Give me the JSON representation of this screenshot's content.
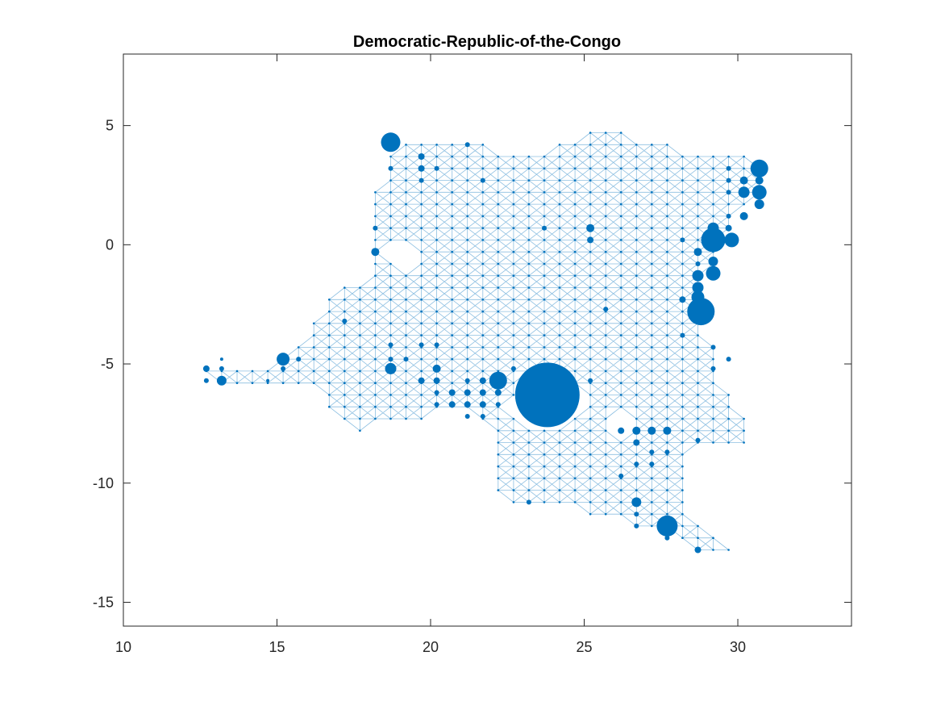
{
  "chart_data": {
    "type": "scatter",
    "title": "Democratic-Republic-of-the-Congo",
    "xlabel": "",
    "ylabel": "",
    "xlim": [
      10,
      33.7
    ],
    "ylim": [
      -16,
      8
    ],
    "xticks": [
      10,
      15,
      20,
      25,
      30
    ],
    "yticks": [
      5,
      0,
      -5,
      -10,
      -15
    ],
    "xtick_labels": [
      "10",
      "15",
      "20",
      "25",
      "30"
    ],
    "ytick_labels": [
      "5",
      "0",
      "-5",
      "-10",
      "-15"
    ],
    "grid": false,
    "box": true,
    "color": "#0072BD",
    "mesh_step": 0.5,
    "mesh_color": "#0072BD",
    "outline": [
      [
        12.7,
        -5.2
      ],
      [
        13.3,
        -4.8
      ],
      [
        14.8,
        -4.8
      ],
      [
        15.2,
        -4.6
      ],
      [
        15.8,
        -4.2
      ],
      [
        16.2,
        -3.0
      ],
      [
        16.8,
        -1.8
      ],
      [
        17.3,
        -1.2
      ],
      [
        17.8,
        -1.8
      ],
      [
        18.2,
        -0.8
      ],
      [
        18.2,
        0.5
      ],
      [
        18.0,
        1.8
      ],
      [
        18.7,
        3.7
      ],
      [
        19.2,
        4.7
      ],
      [
        21.0,
        4.7
      ],
      [
        22.0,
        4.2
      ],
      [
        22.8,
        4.2
      ],
      [
        24.0,
        4.2
      ],
      [
        25.0,
        4.7
      ],
      [
        25.8,
        5.2
      ],
      [
        26.5,
        4.7
      ],
      [
        28.0,
        4.2
      ],
      [
        29.5,
        4.2
      ],
      [
        30.3,
        3.7
      ],
      [
        30.8,
        3.4
      ],
      [
        31.0,
        2.8
      ],
      [
        30.8,
        1.8
      ],
      [
        29.8,
        0.8
      ],
      [
        29.5,
        -0.3
      ],
      [
        29.0,
        -1.3
      ],
      [
        29.0,
        -3.5
      ],
      [
        29.3,
        -4.2
      ],
      [
        29.5,
        -6.0
      ],
      [
        30.5,
        -7.2
      ],
      [
        30.5,
        -8.3
      ],
      [
        28.5,
        -8.5
      ],
      [
        28.3,
        -9.5
      ],
      [
        28.3,
        -11.3
      ],
      [
        29.0,
        -11.8
      ],
      [
        29.5,
        -12.3
      ],
      [
        29.9,
        -12.3
      ],
      [
        29.9,
        -13.3
      ],
      [
        29.0,
        -13.2
      ],
      [
        28.3,
        -12.6
      ],
      [
        27.5,
        -12.1
      ],
      [
        27.0,
        -11.8
      ],
      [
        26.3,
        -11.8
      ],
      [
        25.8,
        -11.3
      ],
      [
        24.8,
        -11.3
      ],
      [
        24.0,
        -11.0
      ],
      [
        23.0,
        -11.0
      ],
      [
        22.3,
        -10.8
      ],
      [
        22.0,
        -10.3
      ],
      [
        22.0,
        -9.0
      ],
      [
        21.8,
        -7.5
      ],
      [
        20.5,
        -6.8
      ],
      [
        19.5,
        -7.5
      ],
      [
        18.0,
        -7.8
      ],
      [
        17.3,
        -7.8
      ],
      [
        16.8,
        -7.3
      ],
      [
        16.3,
        -6.0
      ],
      [
        14.5,
        -5.8
      ],
      [
        13.2,
        -5.8
      ],
      [
        12.7,
        -5.7
      ]
    ],
    "holes": [
      [
        [
          23.8,
          -5.4
        ],
        [
          24.3,
          -5.8
        ],
        [
          24.8,
          -6.4
        ],
        [
          24.6,
          -7.2
        ],
        [
          24.0,
          -7.6
        ],
        [
          23.2,
          -7.4
        ],
        [
          22.7,
          -6.8
        ],
        [
          22.8,
          -6.0
        ],
        [
          23.3,
          -5.5
        ]
      ],
      [
        [
          24.7,
          -6.6
        ],
        [
          25.0,
          -6.4
        ],
        [
          25.0,
          -7.2
        ],
        [
          24.7,
          -7.2
        ]
      ],
      [
        [
          18.3,
          0.0
        ],
        [
          18.6,
          0.2
        ],
        [
          18.8,
          -1.2
        ],
        [
          19.4,
          -1.3
        ],
        [
          19.5,
          -0.4
        ],
        [
          18.8,
          0.2
        ],
        [
          18.4,
          0.0
        ]
      ],
      [
        [
          26.0,
          -7.0
        ],
        [
          26.4,
          -7.0
        ],
        [
          26.4,
          -7.8
        ],
        [
          26.0,
          -7.8
        ]
      ]
    ],
    "points": [
      {
        "x": 23.8,
        "y": -6.3,
        "r": 40
      },
      {
        "x": 28.8,
        "y": -2.8,
        "r": 17
      },
      {
        "x": 29.2,
        "y": 0.2,
        "r": 15
      },
      {
        "x": 30.7,
        "y": 3.2,
        "r": 11
      },
      {
        "x": 18.7,
        "y": 4.3,
        "r": 12
      },
      {
        "x": 27.7,
        "y": -11.8,
        "r": 13
      },
      {
        "x": 22.2,
        "y": -5.7,
        "r": 11
      },
      {
        "x": 29.8,
        "y": 0.2,
        "r": 9
      },
      {
        "x": 29.2,
        "y": -1.2,
        "r": 9
      },
      {
        "x": 30.7,
        "y": 2.2,
        "r": 9
      },
      {
        "x": 30.2,
        "y": 2.2,
        "r": 7
      },
      {
        "x": 28.7,
        "y": -1.3,
        "r": 7
      },
      {
        "x": 28.7,
        "y": -1.8,
        "r": 7
      },
      {
        "x": 28.7,
        "y": -2.2,
        "r": 8
      },
      {
        "x": 29.2,
        "y": 0.7,
        "r": 7
      },
      {
        "x": 15.2,
        "y": -4.8,
        "r": 8
      },
      {
        "x": 18.7,
        "y": -5.2,
        "r": 7
      },
      {
        "x": 13.2,
        "y": -5.7,
        "r": 6
      },
      {
        "x": 26.7,
        "y": -10.8,
        "r": 6
      },
      {
        "x": 30.7,
        "y": 1.7,
        "r": 6
      },
      {
        "x": 29.2,
        "y": -0.7,
        "r": 6
      },
      {
        "x": 30.2,
        "y": 1.2,
        "r": 5
      },
      {
        "x": 30.2,
        "y": 2.7,
        "r": 5
      },
      {
        "x": 28.7,
        "y": -0.3,
        "r": 5
      },
      {
        "x": 25.2,
        "y": 0.7,
        "r": 5
      },
      {
        "x": 25.2,
        "y": 0.2,
        "r": 4
      },
      {
        "x": 18.2,
        "y": -0.3,
        "r": 5
      },
      {
        "x": 26.7,
        "y": -7.8,
        "r": 5
      },
      {
        "x": 27.2,
        "y": -7.8,
        "r": 5
      },
      {
        "x": 27.7,
        "y": -7.8,
        "r": 5
      },
      {
        "x": 26.7,
        "y": -8.3,
        "r": 4
      },
      {
        "x": 26.2,
        "y": -7.8,
        "r": 4
      },
      {
        "x": 28.7,
        "y": -12.8,
        "r": 4
      },
      {
        "x": 26.7,
        "y": -11.3,
        "r": 3
      },
      {
        "x": 27.7,
        "y": -12.3,
        "r": 3
      },
      {
        "x": 29.7,
        "y": 0.7,
        "r": 4
      },
      {
        "x": 29.7,
        "y": 1.2,
        "r": 3
      },
      {
        "x": 29.7,
        "y": 3.2,
        "r": 3
      },
      {
        "x": 30.7,
        "y": 2.7,
        "r": 5
      },
      {
        "x": 29.7,
        "y": 2.7,
        "r": 3
      },
      {
        "x": 29.7,
        "y": 2.2,
        "r": 3
      },
      {
        "x": 28.2,
        "y": 0.2,
        "r": 3
      },
      {
        "x": 28.2,
        "y": -2.3,
        "r": 4
      },
      {
        "x": 28.7,
        "y": -0.8,
        "r": 3
      },
      {
        "x": 28.2,
        "y": -3.8,
        "r": 3
      },
      {
        "x": 29.2,
        "y": -4.3,
        "r": 3
      },
      {
        "x": 12.7,
        "y": -5.2,
        "r": 4
      },
      {
        "x": 12.7,
        "y": -5.7,
        "r": 3
      },
      {
        "x": 13.2,
        "y": -5.2,
        "r": 3
      },
      {
        "x": 13.2,
        "y": -4.8,
        "r": 2
      },
      {
        "x": 15.7,
        "y": -4.8,
        "r": 3
      },
      {
        "x": 15.2,
        "y": -5.2,
        "r": 3
      },
      {
        "x": 14.7,
        "y": -5.7,
        "r": 2
      },
      {
        "x": 17.2,
        "y": -3.2,
        "r": 3
      },
      {
        "x": 18.2,
        "y": 0.7,
        "r": 3
      },
      {
        "x": 18.7,
        "y": 3.2,
        "r": 3
      },
      {
        "x": 19.7,
        "y": 3.7,
        "r": 4
      },
      {
        "x": 19.7,
        "y": 3.2,
        "r": 4
      },
      {
        "x": 19.7,
        "y": 2.7,
        "r": 3
      },
      {
        "x": 20.2,
        "y": 3.2,
        "r": 3
      },
      {
        "x": 21.2,
        "y": 4.2,
        "r": 3
      },
      {
        "x": 21.7,
        "y": 2.7,
        "r": 3
      },
      {
        "x": 23.7,
        "y": 0.7,
        "r": 3
      },
      {
        "x": 20.2,
        "y": -5.2,
        "r": 5
      },
      {
        "x": 19.7,
        "y": -5.7,
        "r": 4
      },
      {
        "x": 20.2,
        "y": -5.7,
        "r": 4
      },
      {
        "x": 20.7,
        "y": -6.2,
        "r": 4
      },
      {
        "x": 20.7,
        "y": -6.7,
        "r": 4
      },
      {
        "x": 21.2,
        "y": -6.2,
        "r": 4
      },
      {
        "x": 21.2,
        "y": -6.7,
        "r": 4
      },
      {
        "x": 21.7,
        "y": -6.2,
        "r": 4
      },
      {
        "x": 21.7,
        "y": -6.7,
        "r": 4
      },
      {
        "x": 22.2,
        "y": -6.2,
        "r": 4
      },
      {
        "x": 22.2,
        "y": -6.7,
        "r": 3
      },
      {
        "x": 21.2,
        "y": -7.2,
        "r": 3
      },
      {
        "x": 21.7,
        "y": -7.2,
        "r": 3
      },
      {
        "x": 20.2,
        "y": -6.2,
        "r": 3
      },
      {
        "x": 20.2,
        "y": -6.7,
        "r": 3
      },
      {
        "x": 21.7,
        "y": -5.7,
        "r": 4
      },
      {
        "x": 21.2,
        "y": -5.7,
        "r": 3
      },
      {
        "x": 22.7,
        "y": -5.2,
        "r": 3
      },
      {
        "x": 19.2,
        "y": -4.8,
        "r": 3
      },
      {
        "x": 19.7,
        "y": -4.2,
        "r": 3
      },
      {
        "x": 18.7,
        "y": -4.8,
        "r": 3
      },
      {
        "x": 18.7,
        "y": -4.2,
        "r": 3
      },
      {
        "x": 20.2,
        "y": -4.2,
        "r": 3
      },
      {
        "x": 25.2,
        "y": -5.7,
        "r": 3
      },
      {
        "x": 25.7,
        "y": -2.7,
        "r": 3
      },
      {
        "x": 27.2,
        "y": -9.2,
        "r": 3
      },
      {
        "x": 27.7,
        "y": -8.7,
        "r": 3
      },
      {
        "x": 27.2,
        "y": -8.7,
        "r": 3
      },
      {
        "x": 26.7,
        "y": -9.2,
        "r": 3
      },
      {
        "x": 26.2,
        "y": -9.7,
        "r": 3
      },
      {
        "x": 26.7,
        "y": -11.8,
        "r": 3
      },
      {
        "x": 23.2,
        "y": -10.8,
        "r": 3
      },
      {
        "x": 28.7,
        "y": -8.2,
        "r": 3
      },
      {
        "x": 29.7,
        "y": -4.8,
        "r": 3
      },
      {
        "x": 29.2,
        "y": -5.2,
        "r": 3
      }
    ]
  }
}
